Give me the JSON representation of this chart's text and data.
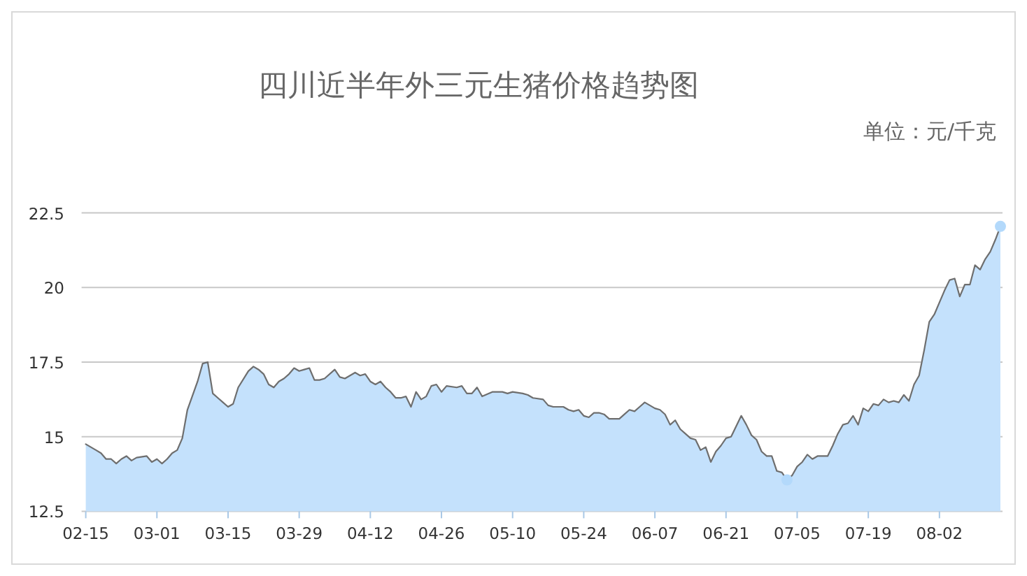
{
  "chart_data": {
    "type": "area",
    "title": "四川近半年外三元生猪价格趋势图",
    "annotations": [
      "单位：元/千克"
    ],
    "xlim": [
      "--02-15",
      "--08-14"
    ],
    "xticks": [
      {
        "value": "--02-15",
        "label": "02-15"
      },
      {
        "value": "--03-01",
        "label": "03-01"
      },
      {
        "value": "--03-15",
        "label": "03-15"
      },
      {
        "value": "--03-29",
        "label": "03-29"
      },
      {
        "value": "--04-12",
        "label": "04-12"
      },
      {
        "value": "--04-26",
        "label": "04-26"
      },
      {
        "value": "--05-10",
        "label": "05-10"
      },
      {
        "value": "--05-24",
        "label": "05-24"
      },
      {
        "value": "--06-07",
        "label": "06-07"
      },
      {
        "value": "--06-21",
        "label": "06-21"
      },
      {
        "value": "--07-05",
        "label": "07-05"
      },
      {
        "value": "--07-19",
        "label": "07-19"
      },
      {
        "value": "--08-02",
        "label": "08-02"
      }
    ],
    "ylim": [
      12.5,
      22.5
    ],
    "yticks": [
      12.5,
      15,
      17.5,
      20,
      22.5
    ],
    "grid": "y",
    "series": [
      {
        "color": "#c4e1fc",
        "x": [
          "--02-15",
          "--02-17",
          "--02-18",
          "--02-19",
          "--02-20",
          "--02-21",
          "--02-22",
          "--02-23",
          "--02-24",
          "--02-25",
          "--02-27",
          "--02-28",
          "--03-01",
          "--03-02",
          "--03-03",
          "--03-04",
          "--03-05",
          "--03-06",
          "--03-07",
          "--03-09",
          "--03-10",
          "--03-11",
          "--03-12",
          "--03-13",
          "--03-14",
          "--03-15",
          "--03-16",
          "--03-17",
          "--03-19",
          "--03-20",
          "--03-21",
          "--03-22",
          "--03-23",
          "--03-24",
          "--03-25",
          "--03-26",
          "--03-27",
          "--03-28",
          "--03-29",
          "--03-30",
          "--03-31",
          "--04-01",
          "--04-02",
          "--04-03",
          "--04-05",
          "--04-06",
          "--04-07",
          "--04-08",
          "--04-09",
          "--04-10",
          "--04-11",
          "--04-12",
          "--04-13",
          "--04-14",
          "--04-15",
          "--04-16",
          "--04-17",
          "--04-18",
          "--04-19",
          "--04-20",
          "--04-21",
          "--04-22",
          "--04-23",
          "--04-24",
          "--04-25",
          "--04-26",
          "--04-27",
          "--04-29",
          "--04-30",
          "--05-01",
          "--05-02",
          "--05-03",
          "--05-04",
          "--05-06",
          "--05-08",
          "--05-09",
          "--05-10",
          "--05-12",
          "--05-13",
          "--05-14",
          "--05-16",
          "--05-17",
          "--05-18",
          "--05-20",
          "--05-21",
          "--05-22",
          "--05-23",
          "--05-24",
          "--05-25",
          "--05-26",
          "--05-27",
          "--05-28",
          "--05-29",
          "--05-31",
          "--06-01",
          "--06-02",
          "--06-03",
          "--06-04",
          "--06-05",
          "--06-06",
          "--06-07",
          "--06-08",
          "--06-09",
          "--06-10",
          "--06-11",
          "--06-12",
          "--06-13",
          "--06-14",
          "--06-15",
          "--06-16",
          "--06-17",
          "--06-18",
          "--06-19",
          "--06-20",
          "--06-21",
          "--06-22",
          "--06-23",
          "--06-24",
          "--06-25",
          "--06-26",
          "--06-27",
          "--06-28",
          "--06-29",
          "--06-30",
          "--07-01",
          "--07-02",
          "--07-03",
          "--07-04",
          "--07-05",
          "--07-06",
          "--07-07",
          "--07-08",
          "--07-09",
          "--07-11",
          "--07-12",
          "--07-13",
          "--07-14",
          "--07-15",
          "--07-16",
          "--07-17",
          "--07-18",
          "--07-19",
          "--07-20",
          "--07-21",
          "--07-22",
          "--07-23",
          "--07-24",
          "--07-25",
          "--07-26",
          "--07-27",
          "--07-28",
          "--07-29",
          "--07-30",
          "--07-31",
          "--08-01",
          "--08-02",
          "--08-03",
          "--08-04",
          "--08-05",
          "--08-06",
          "--08-07",
          "--08-08",
          "--08-09",
          "--08-10",
          "--08-11",
          "--08-12",
          "--08-13",
          "--08-14"
        ],
        "values": [
          14.75,
          14.55,
          14.45,
          14.25,
          14.25,
          14.1,
          14.25,
          14.35,
          14.2,
          14.3,
          14.35,
          14.15,
          14.25,
          14.1,
          14.25,
          14.45,
          14.55,
          14.95,
          15.9,
          16.85,
          17.45,
          17.5,
          16.45,
          16.3,
          16.15,
          16.0,
          16.1,
          16.65,
          17.2,
          17.35,
          17.25,
          17.1,
          16.75,
          16.65,
          16.85,
          16.95,
          17.1,
          17.3,
          17.2,
          17.25,
          17.3,
          16.9,
          16.9,
          16.95,
          17.25,
          17.0,
          16.95,
          17.05,
          17.15,
          17.05,
          17.1,
          16.85,
          16.75,
          16.85,
          16.65,
          16.5,
          16.3,
          16.3,
          16.35,
          16.0,
          16.5,
          16.25,
          16.35,
          16.7,
          16.75,
          16.5,
          16.7,
          16.65,
          16.7,
          16.45,
          16.45,
          16.65,
          16.35,
          16.5,
          16.5,
          16.45,
          16.5,
          16.45,
          16.4,
          16.3,
          16.25,
          16.05,
          16.0,
          16.0,
          15.9,
          15.85,
          15.9,
          15.7,
          15.65,
          15.8,
          15.8,
          15.75,
          15.6,
          15.6,
          15.75,
          15.9,
          15.85,
          16.0,
          16.15,
          16.05,
          15.95,
          15.9,
          15.75,
          15.4,
          15.55,
          15.25,
          15.1,
          14.95,
          14.9,
          14.55,
          14.65,
          14.15,
          14.5,
          14.7,
          14.95,
          15.0,
          15.35,
          15.7,
          15.4,
          15.05,
          14.9,
          14.5,
          14.35,
          14.35,
          13.85,
          13.8,
          13.55,
          13.7,
          14.0,
          14.15,
          14.4,
          14.25,
          14.35,
          14.35,
          14.7,
          15.1,
          15.4,
          15.45,
          15.7,
          15.4,
          15.95,
          15.85,
          16.1,
          16.05,
          16.25,
          16.15,
          16.2,
          16.15,
          16.4,
          16.2,
          16.75,
          17.05,
          17.9,
          18.85,
          19.1,
          19.5,
          19.9,
          20.25,
          20.3,
          19.7,
          20.1,
          20.1,
          20.75,
          20.6,
          20.95,
          21.2,
          21.6,
          22.05
        ]
      },
      {
        "type": "scatter",
        "color": "#b3d9fb",
        "x": [
          "--07-03",
          "--08-14"
        ],
        "values": [
          13.55,
          22.05
        ]
      }
    ]
  }
}
